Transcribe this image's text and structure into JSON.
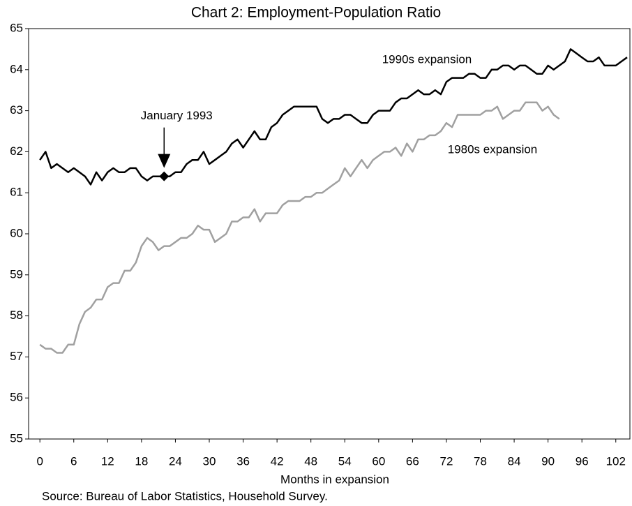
{
  "chart_data": {
    "type": "line",
    "title": "Chart 2:  Employment-Population Ratio",
    "xlabel": "Months in expansion",
    "source": "Source: Bureau of Labor Statistics, Household Survey.",
    "x": [
      0,
      1,
      2,
      3,
      4,
      5,
      6,
      7,
      8,
      9,
      10,
      11,
      12,
      13,
      14,
      15,
      16,
      17,
      18,
      19,
      20,
      21,
      22,
      23,
      24,
      25,
      26,
      27,
      28,
      29,
      30,
      31,
      32,
      33,
      34,
      35,
      36,
      37,
      38,
      39,
      40,
      41,
      42,
      43,
      44,
      45,
      46,
      47,
      48,
      49,
      50,
      51,
      52,
      53,
      54,
      55,
      56,
      57,
      58,
      59,
      60,
      61,
      62,
      63,
      64,
      65,
      66,
      67,
      68,
      69,
      70,
      71,
      72,
      73,
      74,
      75,
      76,
      77,
      78,
      79,
      80,
      81,
      82,
      83,
      84,
      85,
      86,
      87,
      88,
      89,
      90,
      91,
      92,
      93,
      94,
      95,
      96,
      97,
      98,
      99,
      100,
      101,
      102,
      103,
      104
    ],
    "series": [
      {
        "name": "1990s expansion",
        "color": "#000000",
        "values": [
          61.8,
          62.0,
          61.6,
          61.7,
          61.6,
          61.5,
          61.6,
          61.5,
          61.4,
          61.2,
          61.5,
          61.3,
          61.5,
          61.6,
          61.5,
          61.5,
          61.6,
          61.6,
          61.4,
          61.3,
          61.4,
          61.4,
          61.4,
          61.4,
          61.5,
          61.5,
          61.7,
          61.8,
          61.8,
          62.0,
          61.7,
          61.8,
          61.9,
          62.0,
          62.2,
          62.3,
          62.1,
          62.3,
          62.5,
          62.3,
          62.3,
          62.6,
          62.7,
          62.9,
          63.0,
          63.1,
          63.1,
          63.1,
          63.1,
          63.1,
          62.8,
          62.7,
          62.8,
          62.8,
          62.9,
          62.9,
          62.8,
          62.7,
          62.7,
          62.9,
          63.0,
          63.0,
          63.0,
          63.2,
          63.3,
          63.3,
          63.4,
          63.5,
          63.4,
          63.4,
          63.5,
          63.4,
          63.7,
          63.8,
          63.8,
          63.8,
          63.9,
          63.9,
          63.8,
          63.8,
          64.0,
          64.0,
          64.1,
          64.1,
          64.0,
          64.1,
          64.1,
          64.0,
          63.9,
          63.9,
          64.1,
          64.0,
          64.1,
          64.2,
          64.5,
          64.4,
          64.3,
          64.2,
          64.2,
          64.3,
          64.1,
          64.1,
          64.1,
          64.2,
          64.3
        ]
      },
      {
        "name": "1980s expansion",
        "color": "#a0a0a0",
        "values": [
          57.3,
          57.2,
          57.2,
          57.1,
          57.1,
          57.3,
          57.3,
          57.8,
          58.1,
          58.2,
          58.4,
          58.4,
          58.7,
          58.8,
          58.8,
          59.1,
          59.1,
          59.3,
          59.7,
          59.9,
          59.8,
          59.6,
          59.7,
          59.7,
          59.8,
          59.9,
          59.9,
          60.0,
          60.2,
          60.1,
          60.1,
          59.8,
          59.9,
          60.0,
          60.3,
          60.3,
          60.4,
          60.4,
          60.6,
          60.3,
          60.5,
          60.5,
          60.5,
          60.7,
          60.8,
          60.8,
          60.8,
          60.9,
          60.9,
          61.0,
          61.0,
          61.1,
          61.2,
          61.3,
          61.6,
          61.4,
          61.6,
          61.8,
          61.6,
          61.8,
          61.9,
          62.0,
          62.0,
          62.1,
          61.9,
          62.2,
          62.0,
          62.3,
          62.3,
          62.4,
          62.4,
          62.5,
          62.7,
          62.6,
          62.9,
          62.9,
          62.9,
          62.9,
          62.9,
          63.0,
          63.0,
          63.1,
          62.8,
          62.9,
          63.0,
          63.0,
          63.2,
          63.2,
          63.2,
          63.0,
          63.1,
          62.9,
          62.8,
          null,
          null,
          null,
          null,
          null,
          null,
          null,
          null,
          null,
          null,
          null,
          null
        ]
      }
    ],
    "annotations": [
      {
        "text": "January 1993",
        "x": 22
      }
    ],
    "xlim": [
      -2,
      104.5
    ],
    "xticks": [
      0,
      6,
      12,
      18,
      24,
      30,
      36,
      42,
      48,
      54,
      60,
      66,
      72,
      78,
      84,
      90,
      96,
      102
    ],
    "ylim": [
      55,
      65
    ],
    "yticks": [
      55,
      56,
      57,
      58,
      59,
      60,
      61,
      62,
      63,
      64,
      65
    ],
    "grid": false
  }
}
